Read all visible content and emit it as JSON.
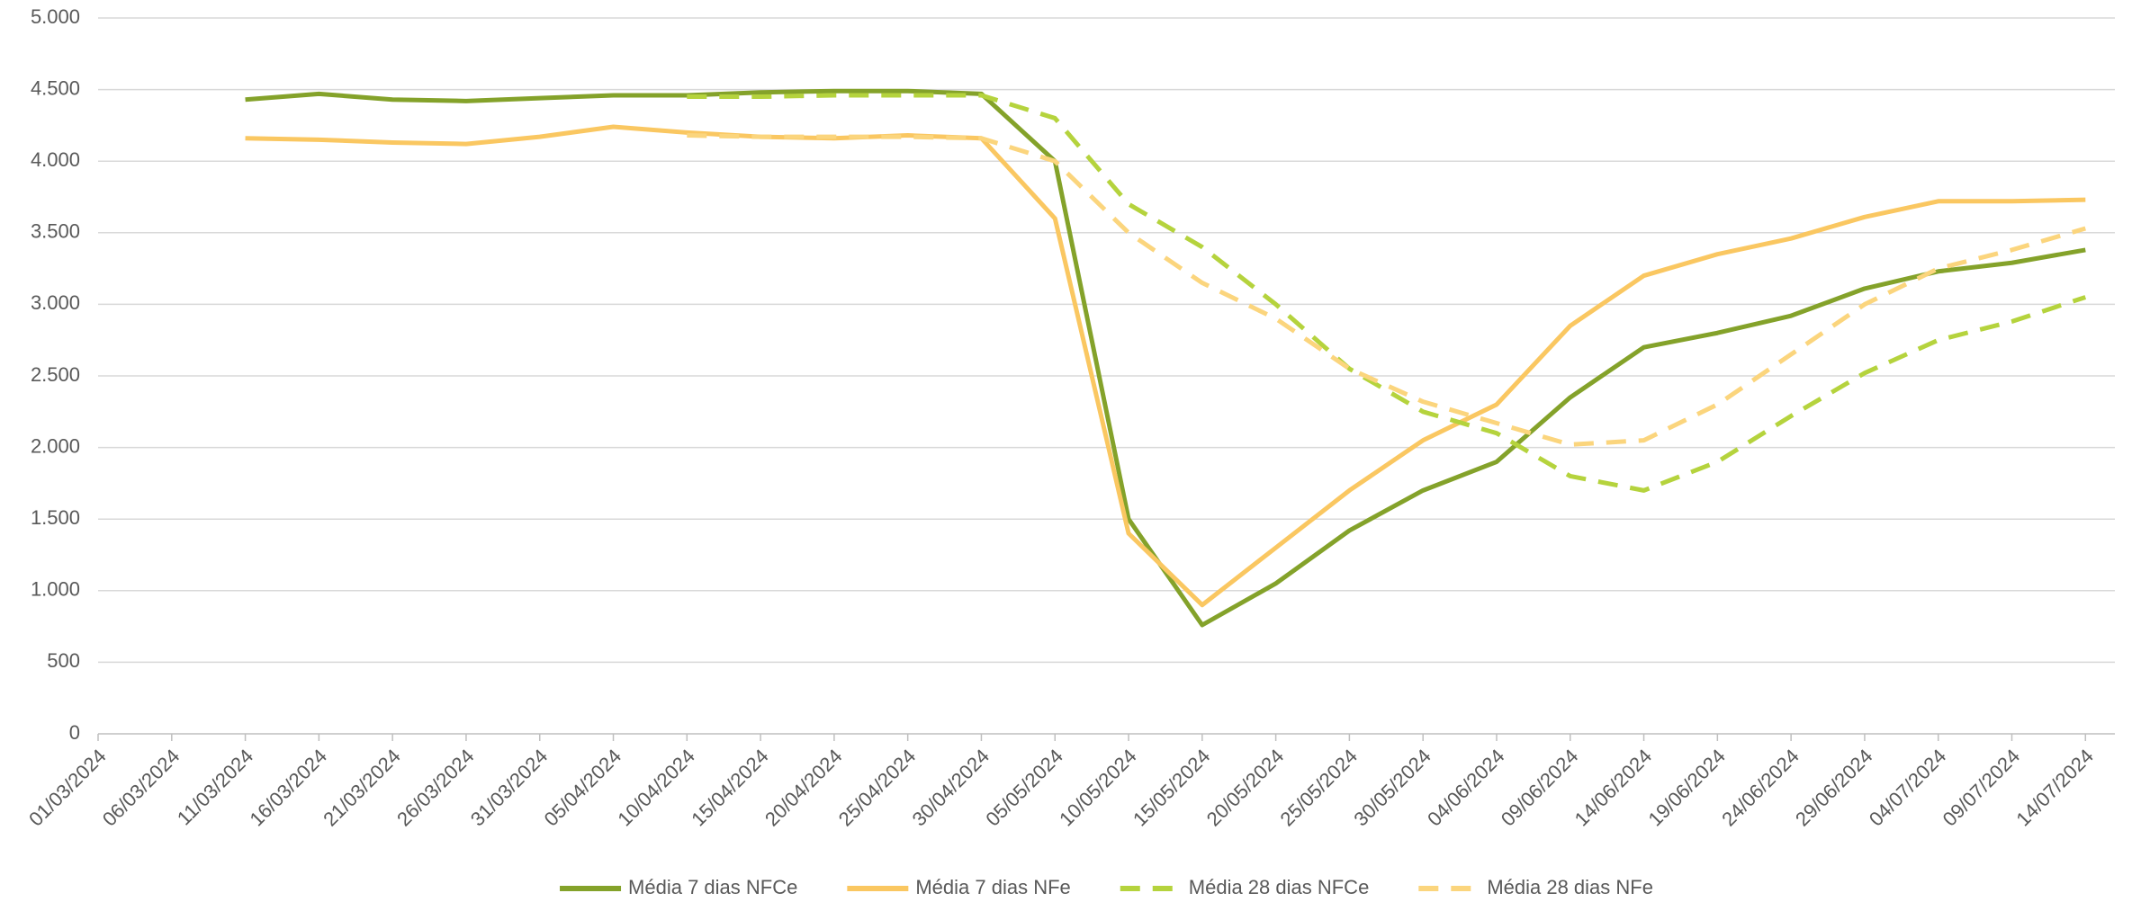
{
  "chart_data": {
    "type": "line",
    "categories": [
      "01/03/2024",
      "06/03/2024",
      "11/03/2024",
      "16/03/2024",
      "21/03/2024",
      "26/03/2024",
      "31/03/2024",
      "05/04/2024",
      "10/04/2024",
      "15/04/2024",
      "20/04/2024",
      "25/04/2024",
      "30/04/2024",
      "05/05/2024",
      "10/05/2024",
      "15/05/2024",
      "20/05/2024",
      "25/05/2024",
      "30/05/2024",
      "04/06/2024",
      "09/06/2024",
      "14/06/2024",
      "19/06/2024",
      "24/06/2024",
      "29/06/2024",
      "04/07/2024",
      "09/07/2024",
      "14/07/2024"
    ],
    "series": [
      {
        "name": "Média 7 dias NFCe",
        "color": "#84a22a",
        "dashed": false,
        "values": [
          null,
          null,
          4430,
          4470,
          4430,
          4420,
          4440,
          4460,
          4460,
          4480,
          4490,
          4490,
          4470,
          4000,
          1500,
          760,
          1050,
          1420,
          1700,
          1900,
          2350,
          2700,
          2800,
          2920,
          3110,
          3230,
          3290,
          3380
        ]
      },
      {
        "name": "Média 7 dias NFe",
        "color": "#fac761",
        "dashed": false,
        "values": [
          null,
          null,
          4160,
          4150,
          4130,
          4120,
          4170,
          4240,
          4200,
          4170,
          4160,
          4180,
          4160,
          3600,
          1400,
          900,
          1300,
          1700,
          2050,
          2300,
          2850,
          3200,
          3350,
          3460,
          3610,
          3720,
          3720,
          3730
        ]
      },
      {
        "name": "Média 28 dias NFCe",
        "color": "#b5d33d",
        "dashed": true,
        "values": [
          null,
          null,
          null,
          null,
          null,
          null,
          null,
          null,
          4450,
          4450,
          4460,
          4460,
          4460,
          4300,
          3700,
          3400,
          3000,
          2550,
          2250,
          2100,
          1800,
          1700,
          1900,
          2220,
          2520,
          2750,
          2880,
          3050
        ]
      },
      {
        "name": "Média 28 dias NFe",
        "color": "#fbd57d",
        "dashed": true,
        "values": [
          null,
          null,
          null,
          null,
          null,
          null,
          null,
          null,
          4180,
          4170,
          4170,
          4170,
          4160,
          4000,
          3500,
          3150,
          2900,
          2550,
          2320,
          2170,
          2020,
          2050,
          2300,
          2650,
          3000,
          3250,
          3380,
          3530
        ]
      }
    ],
    "ylim": [
      0,
      5000
    ],
    "yticks": [
      0,
      500,
      {
        "value": 1000,
        "label": "1.000"
      },
      {
        "value": 1500,
        "label": "1.500"
      },
      {
        "value": 2000,
        "label": "2.000"
      },
      {
        "value": 2500,
        "label": "2.500"
      },
      {
        "value": 3000,
        "label": "3.000"
      },
      {
        "value": 3500,
        "label": "3.500"
      },
      {
        "value": 4000,
        "label": "4.000"
      },
      {
        "value": 4500,
        "label": "4.500"
      },
      {
        "value": 5000,
        "label": "5.000"
      }
    ],
    "grid": true,
    "legend": "bottom"
  }
}
